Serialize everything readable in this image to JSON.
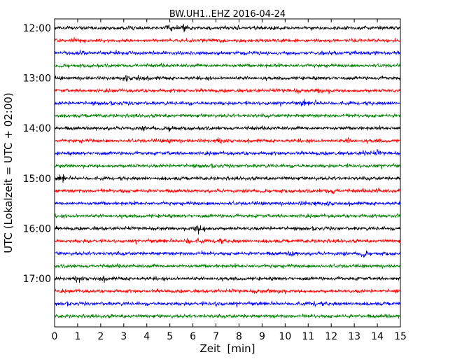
{
  "chart_data": {
    "type": "line",
    "chart_kind": "helicorder (seismogram day plot)",
    "title": "BW.UH1..EHZ 2016-04-24",
    "xlabel": "Zeit  [min]",
    "ylabel": "UTC (Lokalzeit = UTC + 02:00)",
    "xlim": [
      0,
      15
    ],
    "x_ticks": [
      "0",
      "1",
      "2",
      "3",
      "4",
      "5",
      "6",
      "7",
      "8",
      "9",
      "10",
      "11",
      "12",
      "13",
      "14",
      "15"
    ],
    "y_tick_labels": [
      "12:00",
      "13:00",
      "14:00",
      "15:00",
      "16:00",
      "17:00"
    ],
    "trace_minutes": 15,
    "trace_count": 24,
    "color_cycle": [
      "#000000",
      "#ff0000",
      "#0000ff",
      "#008000"
    ],
    "grid": false,
    "legend": "none",
    "series": [
      {
        "start": "12:00",
        "events": [
          [
            5.0,
            3.0
          ],
          [
            5.6,
            2.4
          ],
          [
            3.3,
            1.6
          ],
          [
            12.2,
            1.4
          ]
        ]
      },
      {
        "start": "12:15",
        "events": [
          [
            7.3,
            2.0
          ],
          [
            1.0,
            1.2
          ]
        ]
      },
      {
        "start": "12:30",
        "events": [
          [
            1.2,
            1.6
          ],
          [
            12.8,
            1.4
          ],
          [
            14.0,
            1.5
          ],
          [
            7.9,
            1.2
          ]
        ]
      },
      {
        "start": "12:45",
        "events": []
      },
      {
        "start": "13:00",
        "events": [
          [
            3.1,
            2.2
          ],
          [
            3.6,
            1.8
          ],
          [
            3.9,
            1.3
          ]
        ]
      },
      {
        "start": "13:15",
        "events": [
          [
            10.6,
            1.6
          ],
          [
            11.5,
            2.4
          ],
          [
            11.8,
            1.5
          ]
        ]
      },
      {
        "start": "13:30",
        "events": [
          [
            10.8,
            2.2
          ],
          [
            11.3,
            1.6
          ]
        ]
      },
      {
        "start": "13:45",
        "events": []
      },
      {
        "start": "14:00",
        "events": [
          [
            3.8,
            1.8
          ],
          [
            5.1,
            2.6
          ],
          [
            4.3,
            1.3
          ]
        ]
      },
      {
        "start": "14:15",
        "events": [
          [
            7.1,
            2.4
          ],
          [
            5.0,
            2.0
          ],
          [
            12.8,
            2.0
          ],
          [
            14.0,
            1.6
          ],
          [
            1.0,
            1.3
          ]
        ]
      },
      {
        "start": "14:30",
        "events": [
          [
            5.1,
            1.5
          ],
          [
            13.5,
            2.2
          ],
          [
            14.0,
            2.0
          ]
        ]
      },
      {
        "start": "14:45",
        "events": []
      },
      {
        "start": "15:00",
        "events": [
          [
            0.3,
            2.6
          ]
        ]
      },
      {
        "start": "15:15",
        "events": [
          [
            12.1,
            2.2
          ],
          [
            14.0,
            1.8
          ],
          [
            3.0,
            1.4
          ],
          [
            8.4,
            1.4
          ],
          [
            11.8,
            1.5
          ]
        ]
      },
      {
        "start": "15:30",
        "events": [
          [
            11.3,
            1.8
          ],
          [
            11.9,
            1.6
          ],
          [
            10.8,
            1.5
          ]
        ]
      },
      {
        "start": "15:45",
        "events": [
          [
            14.8,
            1.6
          ]
        ]
      },
      {
        "start": "16:00",
        "events": [
          [
            6.2,
            3.0
          ],
          [
            6.5,
            2.0
          ]
        ]
      },
      {
        "start": "16:15",
        "events": [
          [
            5.8,
            2.4
          ],
          [
            7.1,
            2.2
          ],
          [
            6.3,
            1.6
          ]
        ]
      },
      {
        "start": "16:30",
        "events": [
          [
            10.3,
            2.2
          ],
          [
            13.4,
            2.4
          ],
          [
            6.3,
            1.5
          ],
          [
            12.5,
            1.5
          ]
        ]
      },
      {
        "start": "16:45",
        "events": []
      },
      {
        "start": "17:00",
        "events": [
          [
            1.0,
            2.6
          ],
          [
            2.1,
            1.6
          ]
        ]
      },
      {
        "start": "17:15",
        "events": [
          [
            9.8,
            2.4
          ],
          [
            8.8,
            1.6
          ],
          [
            9.3,
            1.5
          ]
        ]
      },
      {
        "start": "17:30",
        "events": [
          [
            7.1,
            1.8
          ],
          [
            11.3,
            1.8
          ],
          [
            13.0,
            1.4
          ]
        ]
      },
      {
        "start": "17:45",
        "events": [
          [
            14.3,
            1.5
          ]
        ]
      }
    ]
  }
}
